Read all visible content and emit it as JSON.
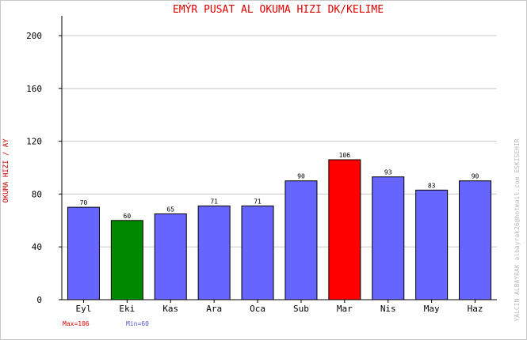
{
  "chart_data": {
    "type": "bar",
    "title": "EMÝR PUSAT AL   OKUMA HIZI  DK/KELIME",
    "ylabel": "OKUMA HIZI / AY",
    "xlabel": "",
    "categories": [
      "Eyl",
      "Eki",
      "Kas",
      "Ara",
      "Oca",
      "Sub",
      "Mar",
      "Nis",
      "May",
      "Haz"
    ],
    "values": [
      70,
      60,
      65,
      71,
      71,
      90,
      106,
      93,
      83,
      90
    ],
    "ylim": [
      0,
      215
    ],
    "yticks": [
      0,
      40,
      80,
      120,
      160,
      200
    ],
    "grid": true,
    "legend": "none",
    "max_label": "Max=106",
    "min_label": "Min=60",
    "side_note": "YALCIN ALBAYRAK  albayrak26@hotmail.com  ESKISEHIR",
    "colors": {
      "default": "#6666ff",
      "max": "#ff0000",
      "min": "#008800",
      "title": "#dd0000",
      "ylabel": "#cc0000",
      "max_text": "#dd0000",
      "min_text": "#5555cc",
      "grid": "#c8c8c8",
      "side_note": "#bbbbbb"
    }
  }
}
